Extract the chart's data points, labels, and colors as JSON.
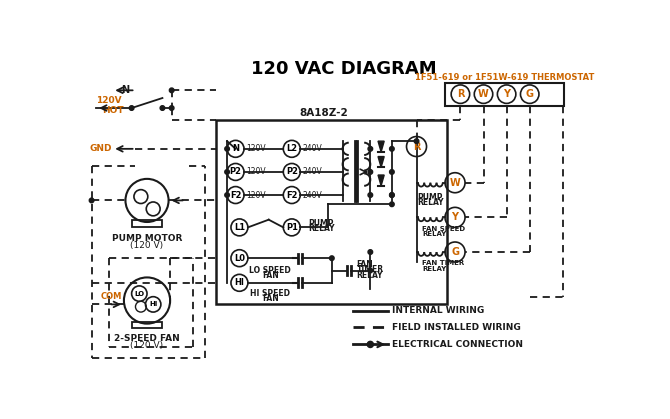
{
  "title": "120 VAC DIAGRAM",
  "title_color": "#000000",
  "title_fontsize": 13,
  "bg_color": "#ffffff",
  "orange": "#cc6600",
  "dark": "#1a1a1a",
  "thermostat_label": "1F51-619 or 1F51W-619 THERMOSTAT",
  "control_box_label": "8A18Z-2",
  "fig_w": 6.7,
  "fig_h": 4.19,
  "dpi": 100
}
